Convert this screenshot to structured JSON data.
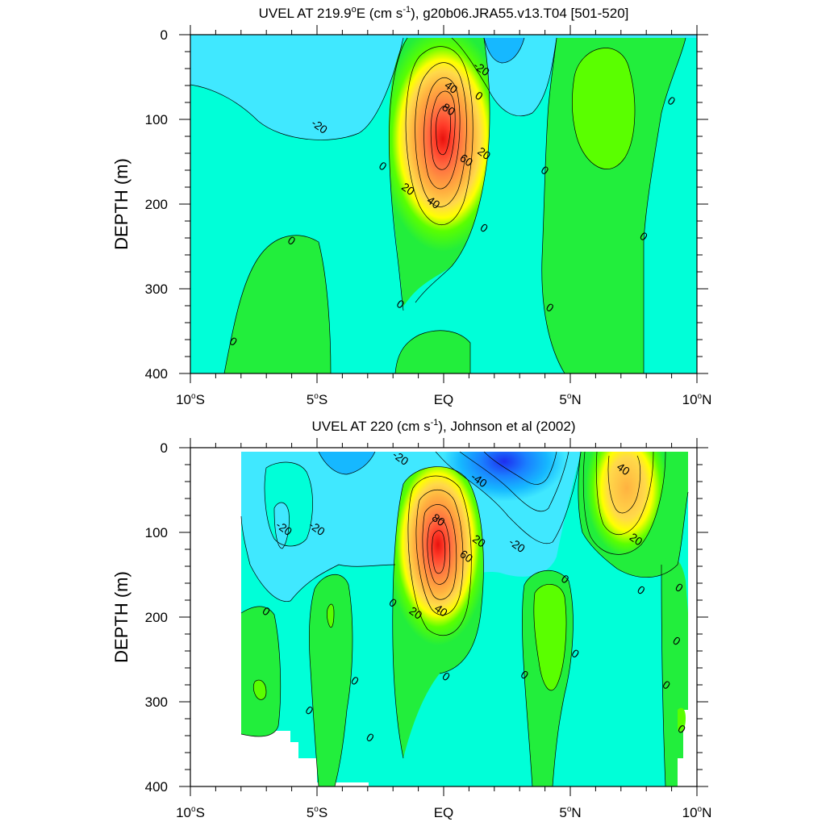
{
  "chart_data": [
    {
      "type": "contour",
      "title": "UVEL AT 219.9",
      "title_sup": "o",
      "title_mid": "E (cm s",
      "title_sup2": "-1",
      "title_end": "), g20b06.JRA55.v13.T04 [501-520]",
      "xlabel": "",
      "ylabel": "DEPTH (m)",
      "x_ticks": [
        {
          "v": -10,
          "hemi": "S",
          "num": "10"
        },
        {
          "v": -5,
          "hemi": "S",
          "num": "5"
        },
        {
          "v": 0,
          "hemi": "",
          "num": "EQ"
        },
        {
          "v": 5,
          "hemi": "N",
          "num": "5"
        },
        {
          "v": 10,
          "hemi": "N",
          "num": "10"
        }
      ],
      "xlim": [
        -10,
        10
      ],
      "y_ticks": [
        0,
        100,
        200,
        300,
        400
      ],
      "ylim": [
        0,
        400
      ],
      "y_reversed": true,
      "contour_interval": 10,
      "level_colors": {
        "-40": "#1e2ef0",
        "-30": "#1a80ff",
        "-20": "#16b8ff",
        "-10": "#40e8ff",
        "0": "#00ffd8",
        "10": "#22ee3c",
        "20": "#5aff00",
        "30": "#ffff00",
        "40": "#ffd94a",
        "50": "#ffb240",
        "60": "#ff9040",
        "70": "#ff6a40",
        "80": "#ff3a28",
        "90": "#e8120e"
      },
      "features": [
        {
          "kind": "eastward_core",
          "x_center": 0.0,
          "depth_center": 115,
          "max_speed": 90,
          "x_halfwidth": 2.4,
          "depth_top": 0,
          "depth_bottom": 320
        },
        {
          "kind": "westward_surface",
          "x_center": 2.5,
          "depth_center": 20,
          "min_speed": -30
        },
        {
          "kind": "westward_region",
          "x_center": -5.0,
          "depth_center": 100,
          "min_speed": -20
        },
        {
          "kind": "eastward_region",
          "x_center": 6.5,
          "depth_center": 150,
          "max_speed": 10
        },
        {
          "kind": "eastward_region",
          "x_center": -5.5,
          "depth_center": 320,
          "max_speed": 10
        }
      ],
      "contour_labels": [
        {
          "text": "-20",
          "x": 1.5,
          "y": 40
        },
        {
          "text": "0",
          "x": 1.4,
          "y": 72
        },
        {
          "text": "40",
          "x": 0.3,
          "y": 62
        },
        {
          "text": "80",
          "x": 0.2,
          "y": 88
        },
        {
          "text": "-20",
          "x": -4.9,
          "y": 108
        },
        {
          "text": "0",
          "x": 9.0,
          "y": 78
        },
        {
          "text": "0",
          "x": -2.4,
          "y": 155
        },
        {
          "text": "60",
          "x": 0.9,
          "y": 148
        },
        {
          "text": "20",
          "x": 1.6,
          "y": 140
        },
        {
          "text": "0",
          "x": 4.0,
          "y": 160
        },
        {
          "text": "20",
          "x": -1.4,
          "y": 182
        },
        {
          "text": "40",
          "x": -0.4,
          "y": 198
        },
        {
          "text": "0",
          "x": -6.0,
          "y": 243
        },
        {
          "text": "0",
          "x": 1.6,
          "y": 228
        },
        {
          "text": "0",
          "x": 7.9,
          "y": 238
        },
        {
          "text": "0",
          "x": -1.7,
          "y": 318
        },
        {
          "text": "0",
          "x": 4.2,
          "y": 322
        },
        {
          "text": "0",
          "x": -8.3,
          "y": 362
        }
      ]
    },
    {
      "type": "contour",
      "title": "UVEL AT 220 (cm s",
      "title_sup": "-1",
      "title_end": "), Johnson et al (2002)",
      "xlabel": "",
      "ylabel": "DEPTH (m)",
      "x_ticks": [
        {
          "v": -10,
          "hemi": "S",
          "num": "10"
        },
        {
          "v": -5,
          "hemi": "S",
          "num": "5"
        },
        {
          "v": 0,
          "hemi": "",
          "num": "EQ"
        },
        {
          "v": 5,
          "hemi": "N",
          "num": "5"
        },
        {
          "v": 10,
          "hemi": "N",
          "num": "10"
        }
      ],
      "xlim": [
        -10,
        10
      ],
      "y_ticks": [
        0,
        100,
        200,
        300,
        400
      ],
      "ylim": [
        0,
        400
      ],
      "y_reversed": true,
      "contour_interval": 10,
      "data_coverage_x": [
        -8,
        9.5
      ],
      "features": [
        {
          "kind": "eastward_core",
          "x_center": -0.2,
          "depth_center": 115,
          "max_speed": 90,
          "x_halfwidth": 2.0,
          "depth_top": 0,
          "depth_bottom": 350
        },
        {
          "kind": "westward_surface",
          "x_center": 2.6,
          "depth_center": 35,
          "min_speed": -40
        },
        {
          "kind": "westward_region",
          "x_center": -5.5,
          "depth_center": 60,
          "min_speed": -20
        },
        {
          "kind": "eastward_core",
          "x_center": 7.0,
          "depth_center": 55,
          "max_speed": 50,
          "x_halfwidth": 1.6,
          "depth_top": 0,
          "depth_bottom": 150
        },
        {
          "kind": "eastward_region",
          "x_center": 4.2,
          "depth_center": 230,
          "max_speed": 10
        },
        {
          "kind": "eastward_region",
          "x_center": -4.8,
          "depth_center": 230,
          "max_speed": 10
        },
        {
          "kind": "eastward_region",
          "x_center": -7.5,
          "depth_center": 280,
          "max_speed": 10
        }
      ],
      "contour_labels": [
        {
          "text": "-20",
          "x": -1.7,
          "y": 12
        },
        {
          "text": "40",
          "x": 7.1,
          "y": 25
        },
        {
          "text": "-40",
          "x": 1.4,
          "y": 38
        },
        {
          "text": "-20",
          "x": -6.3,
          "y": 95
        },
        {
          "text": "-20",
          "x": -5.0,
          "y": 95
        },
        {
          "text": "80",
          "x": -0.2,
          "y": 85
        },
        {
          "text": "20",
          "x": 1.4,
          "y": 110
        },
        {
          "text": "60",
          "x": 0.9,
          "y": 128
        },
        {
          "text": "-20",
          "x": 2.9,
          "y": 115
        },
        {
          "text": "20",
          "x": 7.6,
          "y": 108
        },
        {
          "text": "0",
          "x": 4.8,
          "y": 155
        },
        {
          "text": "0",
          "x": 7.8,
          "y": 168
        },
        {
          "text": "0",
          "x": 9.3,
          "y": 165
        },
        {
          "text": "0",
          "x": -2.0,
          "y": 183
        },
        {
          "text": "0",
          "x": -7.0,
          "y": 193
        },
        {
          "text": "20",
          "x": -1.1,
          "y": 195
        },
        {
          "text": "40",
          "x": -0.1,
          "y": 192
        },
        {
          "text": "0",
          "x": 9.2,
          "y": 228
        },
        {
          "text": "0",
          "x": 5.2,
          "y": 243
        },
        {
          "text": "0",
          "x": -3.5,
          "y": 275
        },
        {
          "text": "0",
          "x": 3.2,
          "y": 268
        },
        {
          "text": "0",
          "x": 0.1,
          "y": 270
        },
        {
          "text": "0",
          "x": 8.8,
          "y": 280
        },
        {
          "text": "0",
          "x": -5.3,
          "y": 310
        },
        {
          "text": "0",
          "x": -2.9,
          "y": 342
        },
        {
          "text": "0",
          "x": 9.4,
          "y": 332
        }
      ]
    }
  ]
}
